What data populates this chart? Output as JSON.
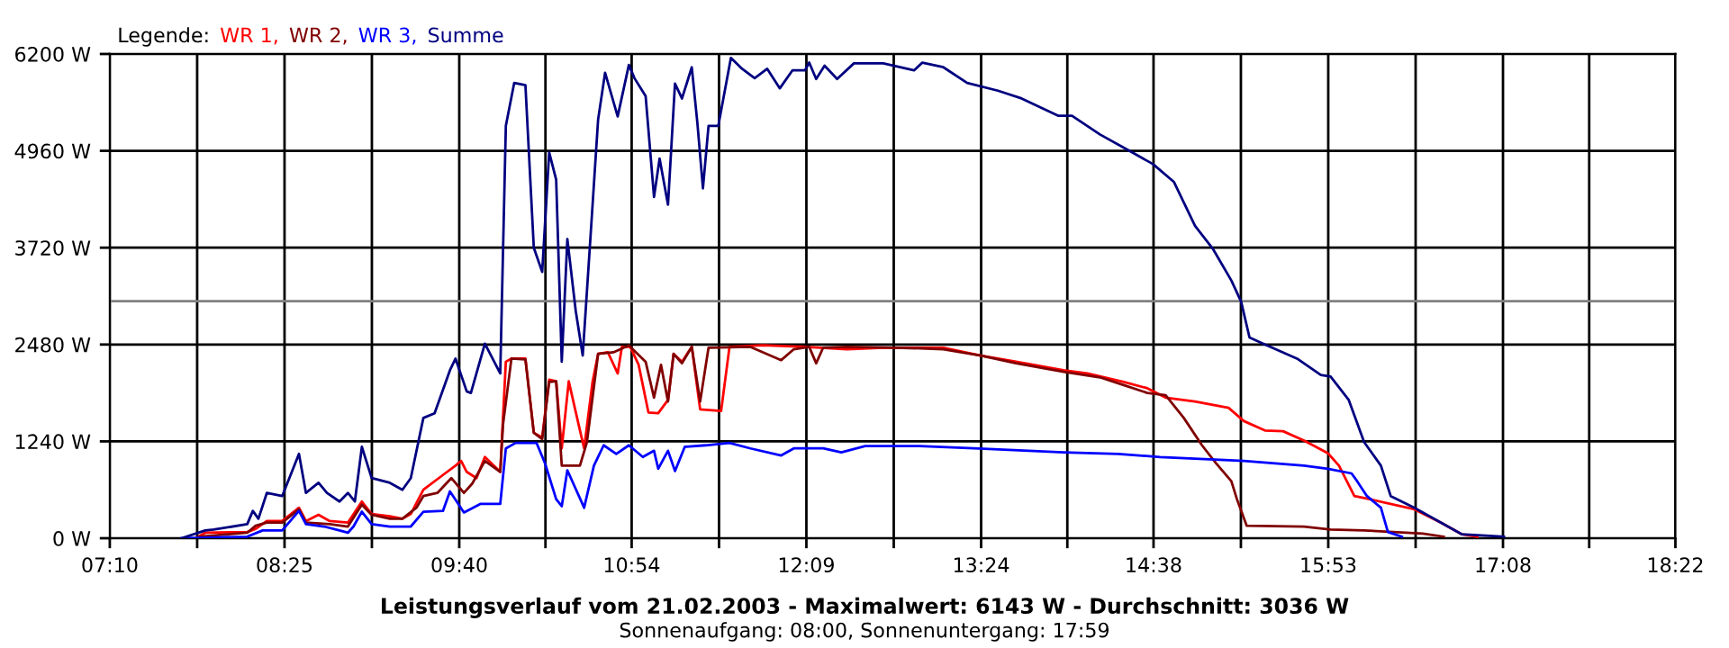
{
  "chart_data": {
    "type": "line",
    "title": "Leistungsverlauf vom 21.02.2003 - Maximalwert: 6143 W - Durchschnitt: 3036 W",
    "subtitle": "Sonnenaufgang: 08:00, Sonnenuntergang: 17:59",
    "legend_title": "Legende:",
    "legend": "top left",
    "grid": true,
    "marker": "none",
    "line_style": "solid",
    "xlim": [
      7.1667,
      18.3667
    ],
    "xticks": [
      {
        "value": 7.1667,
        "label": "07:10"
      },
      {
        "value": 7.7917,
        "label": null
      },
      {
        "value": 8.4167,
        "label": "08:25"
      },
      {
        "value": 9.0417,
        "label": null
      },
      {
        "value": 9.6667,
        "label": "09:40"
      },
      {
        "value": 10.2833,
        "label": null
      },
      {
        "value": 10.9,
        "label": "10:54"
      },
      {
        "value": 11.525,
        "label": null
      },
      {
        "value": 12.15,
        "label": "12:09"
      },
      {
        "value": 12.775,
        "label": null
      },
      {
        "value": 13.4,
        "label": "13:24"
      },
      {
        "value": 14.0167,
        "label": null
      },
      {
        "value": 14.6333,
        "label": "14:38"
      },
      {
        "value": 15.2583,
        "label": null
      },
      {
        "value": 15.8833,
        "label": "15:53"
      },
      {
        "value": 16.5083,
        "label": null
      },
      {
        "value": 17.1333,
        "label": "17:08"
      },
      {
        "value": 17.75,
        "label": null
      },
      {
        "value": 18.3667,
        "label": "18:22"
      }
    ],
    "ylim": [
      0,
      6200
    ],
    "yticks": [
      {
        "value": 0,
        "label": "0 W"
      },
      {
        "value": 1240,
        "label": "1240 W"
      },
      {
        "value": 2480,
        "label": "2480 W"
      },
      {
        "value": 3720,
        "label": "3720 W"
      },
      {
        "value": 4960,
        "label": "4960 W"
      },
      {
        "value": 6200,
        "label": "6200 W"
      }
    ],
    "ref_lines": [
      {
        "axis": "y",
        "value": 3036,
        "label": null,
        "color": "#808080"
      }
    ],
    "series": [
      {
        "name": "WR 1,",
        "color": "#ff0000",
        "x": [
          7.8,
          7.85,
          8.15,
          8.21,
          8.29,
          8.4,
          8.52,
          8.57,
          8.66,
          8.74,
          8.87,
          8.97,
          9.04,
          9.17,
          9.26,
          9.32,
          9.41,
          9.55,
          9.64,
          9.68,
          9.72,
          9.79,
          9.85,
          9.96,
          10.0,
          10.04,
          10.14,
          10.2,
          10.26,
          10.31,
          10.36,
          10.4,
          10.45,
          10.52,
          10.56,
          10.62,
          10.66,
          10.73,
          10.8,
          10.83,
          10.89,
          10.95,
          11.02,
          11.09,
          11.16,
          11.2,
          11.26,
          11.33,
          11.39,
          11.54,
          11.6,
          11.84,
          12.14,
          12.44,
          12.7,
          13.13,
          13.39,
          13.65,
          13.99,
          14.16,
          14.42,
          14.59,
          14.72,
          14.93,
          15.17,
          15.28,
          15.43,
          15.56,
          15.71,
          15.88,
          15.96,
          16.07,
          16.18,
          16.5,
          16.69,
          16.84,
          16.95
        ],
        "values": [
          20,
          70,
          80,
          120,
          220,
          220,
          390,
          220,
          300,
          220,
          200,
          470,
          310,
          280,
          250,
          310,
          620,
          810,
          930,
          990,
          850,
          770,
          1040,
          850,
          2260,
          2300,
          2300,
          1350,
          1290,
          2030,
          2010,
          1150,
          2010,
          1460,
          1150,
          2000,
          2360,
          2380,
          2110,
          2450,
          2450,
          2220,
          1610,
          1600,
          1770,
          2360,
          2260,
          2450,
          1650,
          1630,
          2450,
          2470,
          2450,
          2420,
          2440,
          2440,
          2340,
          2260,
          2150,
          2110,
          2000,
          1920,
          1800,
          1750,
          1670,
          1500,
          1380,
          1370,
          1250,
          1090,
          930,
          540,
          500,
          370,
          200,
          50,
          20
        ]
      },
      {
        "name": "WR 2,",
        "color": "#800000",
        "x": [
          7.8,
          8.15,
          8.21,
          8.29,
          8.4,
          8.52,
          8.57,
          8.74,
          8.87,
          8.97,
          9.04,
          9.17,
          9.26,
          9.36,
          9.41,
          9.51,
          9.61,
          9.7,
          9.76,
          9.85,
          9.96,
          9.98,
          10.04,
          10.14,
          10.2,
          10.26,
          10.31,
          10.36,
          10.4,
          10.53,
          10.58,
          10.66,
          10.77,
          10.88,
          11.0,
          11.06,
          11.11,
          11.16,
          11.2,
          11.26,
          11.33,
          11.39,
          11.45,
          11.75,
          11.97,
          12.06,
          12.17,
          12.22,
          12.27,
          12.44,
          12.79,
          13.13,
          13.39,
          13.65,
          13.99,
          14.25,
          14.42,
          14.59,
          14.72,
          14.85,
          14.98,
          15.08,
          15.19,
          15.23,
          15.3,
          15.71,
          15.9,
          16.14,
          16.56,
          16.71
        ],
        "values": [
          20,
          70,
          160,
          200,
          200,
          370,
          200,
          180,
          150,
          430,
          300,
          250,
          250,
          390,
          540,
          580,
          770,
          580,
          700,
          990,
          850,
          1460,
          2300,
          2290,
          1350,
          1270,
          2000,
          2010,
          930,
          930,
          1230,
          2360,
          2380,
          2470,
          2260,
          1800,
          2220,
          1750,
          2360,
          2240,
          2450,
          1750,
          2440,
          2450,
          2280,
          2420,
          2450,
          2240,
          2440,
          2450,
          2440,
          2420,
          2340,
          2240,
          2130,
          2060,
          1960,
          1860,
          1830,
          1540,
          1190,
          960,
          730,
          500,
          160,
          150,
          110,
          100,
          60,
          20
        ]
      },
      {
        "name": "WR 3,",
        "color": "#0000ff",
        "x": [
          7.68,
          8.15,
          8.26,
          8.4,
          8.52,
          8.57,
          8.7,
          8.81,
          8.87,
          8.91,
          8.97,
          9.04,
          9.17,
          9.32,
          9.41,
          9.55,
          9.6,
          9.7,
          9.82,
          9.96,
          10.0,
          10.07,
          10.22,
          10.28,
          10.36,
          10.4,
          10.44,
          10.56,
          10.63,
          10.7,
          10.79,
          10.88,
          10.98,
          11.06,
          11.09,
          11.16,
          11.21,
          11.28,
          11.43,
          11.6,
          11.75,
          11.97,
          12.06,
          12.27,
          12.4,
          12.57,
          12.96,
          13.35,
          13.99,
          14.38,
          14.68,
          15.28,
          15.71,
          15.88,
          16.05,
          16.09,
          16.16,
          16.26,
          16.31,
          16.41
        ],
        "values": [
          0,
          20,
          100,
          100,
          350,
          180,
          150,
          100,
          70,
          150,
          340,
          180,
          150,
          150,
          340,
          350,
          600,
          330,
          440,
          440,
          1150,
          1220,
          1220,
          960,
          500,
          410,
          870,
          390,
          930,
          1190,
          1080,
          1190,
          1040,
          1120,
          890,
          1120,
          860,
          1170,
          1190,
          1220,
          1150,
          1060,
          1150,
          1150,
          1100,
          1180,
          1180,
          1150,
          1100,
          1080,
          1040,
          990,
          930,
          890,
          830,
          730,
          540,
          390,
          80,
          20
        ]
      },
      {
        "name": "Summe",
        "color": "#000080",
        "x": [
          7.68,
          7.85,
          7.91,
          8.15,
          8.19,
          8.23,
          8.29,
          8.4,
          8.52,
          8.57,
          8.66,
          8.72,
          8.81,
          8.87,
          8.92,
          8.97,
          9.04,
          9.17,
          9.26,
          9.32,
          9.41,
          9.49,
          9.6,
          9.64,
          9.72,
          9.75,
          9.85,
          9.96,
          10.0,
          10.06,
          10.14,
          10.2,
          10.26,
          10.31,
          10.36,
          10.4,
          10.44,
          10.5,
          10.55,
          10.61,
          10.66,
          10.71,
          10.8,
          10.88,
          10.92,
          11.0,
          11.06,
          11.1,
          11.16,
          11.21,
          11.26,
          11.33,
          11.37,
          11.41,
          11.45,
          11.52,
          11.61,
          11.69,
          11.78,
          11.87,
          11.96,
          12.05,
          12.14,
          12.17,
          12.22,
          12.28,
          12.37,
          12.49,
          12.7,
          12.92,
          12.98,
          13.13,
          13.3,
          13.52,
          13.69,
          13.95,
          14.05,
          14.25,
          14.46,
          14.63,
          14.78,
          14.93,
          15.06,
          15.19,
          15.26,
          15.32,
          15.43,
          15.66,
          15.83,
          15.9,
          16.03,
          16.14,
          16.26,
          16.33,
          16.5,
          16.69,
          16.84,
          17.14
        ],
        "values": [
          0,
          100,
          110,
          180,
          350,
          250,
          580,
          540,
          1080,
          580,
          710,
          580,
          470,
          580,
          470,
          1170,
          770,
          710,
          620,
          770,
          1540,
          1600,
          2150,
          2300,
          1880,
          1860,
          2490,
          2110,
          5280,
          5830,
          5800,
          3720,
          3410,
          4940,
          4590,
          2260,
          3830,
          2910,
          2340,
          3980,
          5360,
          5960,
          5400,
          6060,
          5890,
          5660,
          4370,
          4860,
          4270,
          5820,
          5630,
          6030,
          5320,
          4480,
          5280,
          5280,
          6150,
          6010,
          5890,
          6010,
          5760,
          5990,
          5990,
          6090,
          5880,
          6050,
          5880,
          6080,
          6080,
          5990,
          6090,
          6030,
          5830,
          5730,
          5630,
          5410,
          5410,
          5170,
          4960,
          4790,
          4560,
          4000,
          3700,
          3300,
          3030,
          2570,
          2480,
          2300,
          2090,
          2070,
          1770,
          1230,
          930,
          540,
          390,
          200,
          50,
          20
        ]
      }
    ]
  }
}
